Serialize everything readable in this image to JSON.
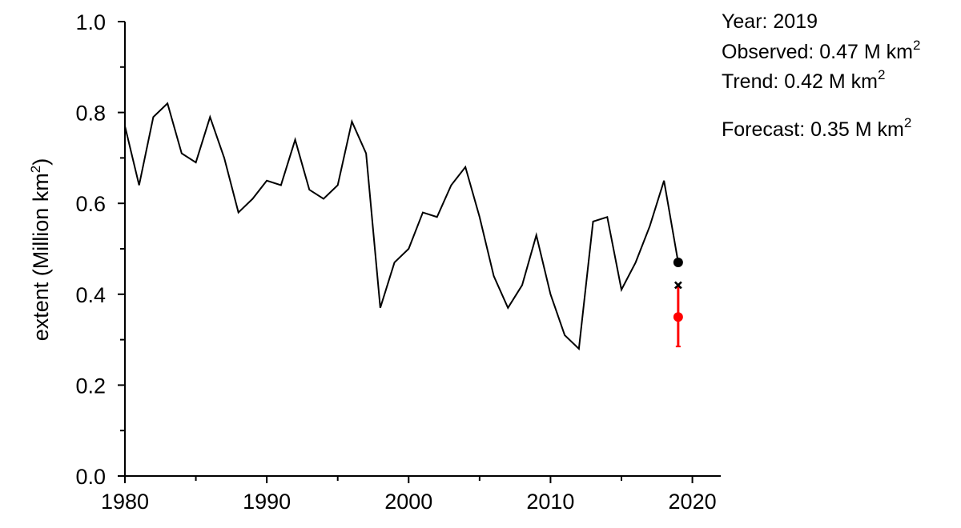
{
  "chart_data": {
    "type": "line",
    "xlim": [
      1980,
      2022
    ],
    "ylim": [
      0.0,
      1.0
    ],
    "ylabel": "extent (Million km",
    "ylabel_sup": "2",
    "ylabel_close": ")",
    "xticks": [
      1980,
      1990,
      2000,
      2010,
      2020
    ],
    "xtick_labels": [
      "1980",
      "1990",
      "2000",
      "2010",
      "2020"
    ],
    "yticks": [
      0.0,
      0.2,
      0.4,
      0.6,
      0.8,
      1.0
    ],
    "ytick_labels": [
      "0.0",
      "0.2",
      "0.4",
      "0.6",
      "0.8",
      "1.0"
    ],
    "grid": false,
    "series": [
      {
        "x": [
          1980,
          1981,
          1982,
          1983,
          1984,
          1985,
          1986,
          1987,
          1988,
          1989,
          1990,
          1991,
          1992,
          1993,
          1994,
          1995,
          1996,
          1997,
          1998,
          1999,
          2000,
          2001,
          2002,
          2003,
          2004,
          2005,
          2006,
          2007,
          2008,
          2009,
          2010,
          2011,
          2012,
          2013,
          2014,
          2015,
          2016,
          2017,
          2018,
          2019
        ],
        "values": [
          0.77,
          0.64,
          0.79,
          0.82,
          0.71,
          0.69,
          0.79,
          0.7,
          0.58,
          0.61,
          0.65,
          0.64,
          0.74,
          0.63,
          0.61,
          0.64,
          0.78,
          0.71,
          0.37,
          0.47,
          0.5,
          0.58,
          0.57,
          0.64,
          0.68,
          0.57,
          0.44,
          0.37,
          0.42,
          0.53,
          0.4,
          0.31,
          0.28,
          0.56,
          0.57,
          0.41,
          0.47,
          0.55,
          0.65,
          0.47
        ],
        "color": "#000000"
      }
    ],
    "observed_point": {
      "x": 2019,
      "y": 0.47,
      "color": "#000000"
    },
    "trend_point": {
      "x": 2019,
      "y": 0.42,
      "marker": "x",
      "color": "#000000"
    },
    "forecast_point": {
      "x": 2019,
      "y": 0.35,
      "err_low": 0.285,
      "err_high": 0.415,
      "color": "#ff0000"
    }
  },
  "annotations": {
    "year": "Year: 2019",
    "observed": "Observed: 0.47 M km",
    "trend": "Trend: 0.42 M km",
    "forecast": "Forecast: 0.35 M km",
    "unit_sup": "2",
    "forecast_color": "#ff0000"
  }
}
